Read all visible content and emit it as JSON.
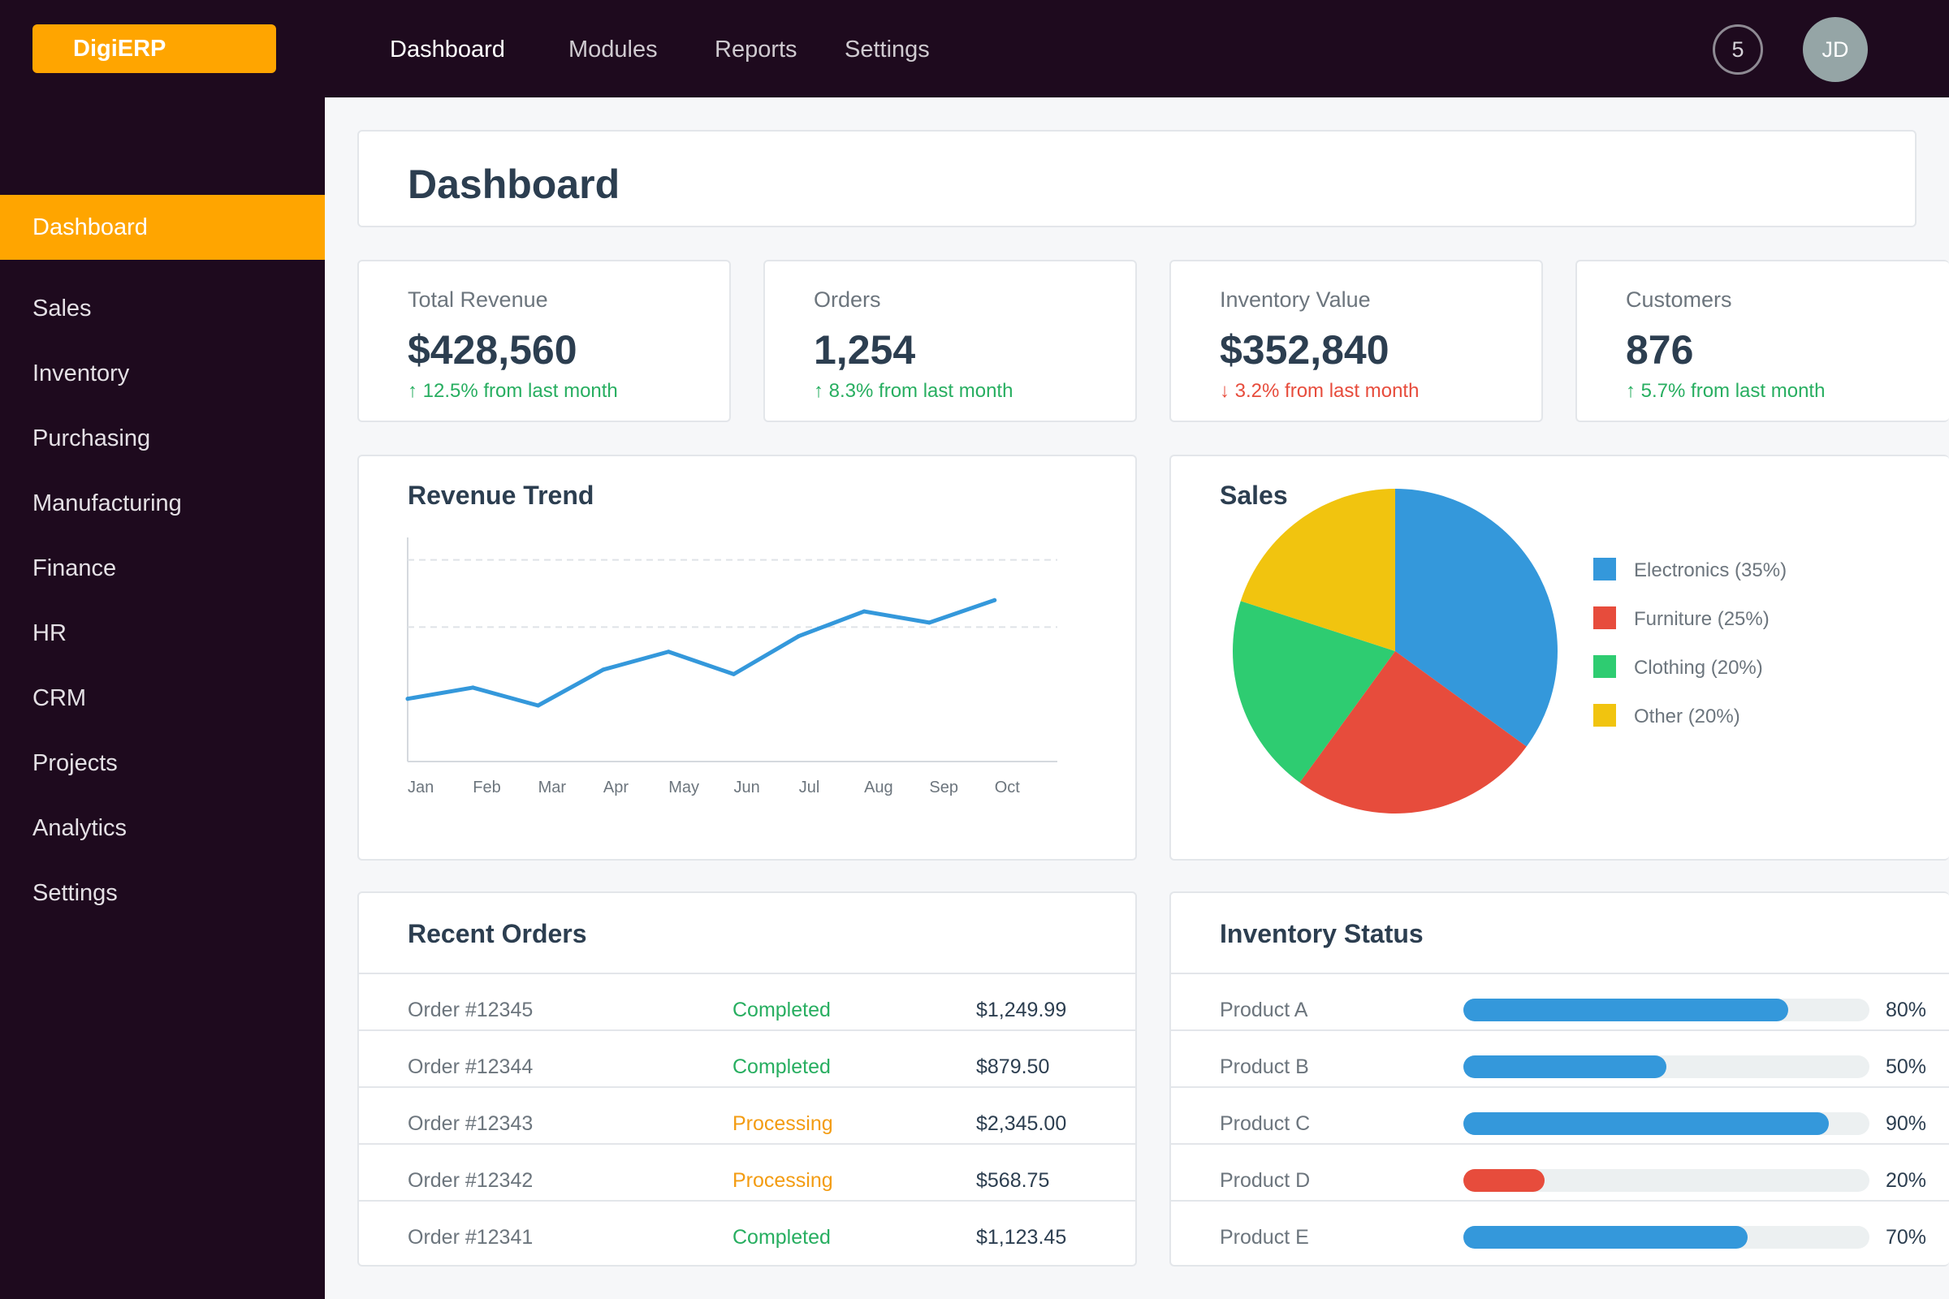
{
  "app": {
    "logo": "DigiERP"
  },
  "topnav": [
    {
      "label": "Dashboard",
      "active": true
    },
    {
      "label": "Modules",
      "active": false
    },
    {
      "label": "Reports",
      "active": false
    },
    {
      "label": "Settings",
      "active": false
    }
  ],
  "header": {
    "notification_count": "5",
    "avatar_initials": "JD"
  },
  "sidebar": {
    "items": [
      {
        "label": "Dashboard",
        "active": true
      },
      {
        "label": "Sales"
      },
      {
        "label": "Inventory"
      },
      {
        "label": "Purchasing"
      },
      {
        "label": "Manufacturing"
      },
      {
        "label": "Finance"
      },
      {
        "label": "HR"
      },
      {
        "label": "CRM"
      },
      {
        "label": "Projects"
      },
      {
        "label": "Analytics"
      },
      {
        "label": "Settings"
      }
    ]
  },
  "page": {
    "title": "Dashboard"
  },
  "stats": [
    {
      "label": "Total Revenue",
      "value": "$428,560",
      "change": "↑ 12.5% from last month",
      "trend": "up"
    },
    {
      "label": "Orders",
      "value": "1,254",
      "change": "↑ 8.3% from last month",
      "trend": "up"
    },
    {
      "label": "Inventory Value",
      "value": "$352,840",
      "change": "↓ 3.2% from last month",
      "trend": "down"
    },
    {
      "label": "Customers",
      "value": "876",
      "change": "↑ 5.7% from last month",
      "trend": "up"
    }
  ],
  "chart_data": [
    {
      "type": "line",
      "title": "Revenue Trend",
      "x": [
        "Jan",
        "Feb",
        "Mar",
        "Apr",
        "May",
        "Jun",
        "Jul",
        "Aug",
        "Sep",
        "Oct"
      ],
      "series": [
        {
          "values": [
            28,
            33,
            25,
            41,
            49,
            39,
            56,
            67,
            62,
            72
          ]
        }
      ],
      "ylim": [
        0,
        100
      ],
      "gridlines": [
        60,
        90
      ],
      "grid": true,
      "color": "#3498db"
    },
    {
      "type": "pie",
      "title": "Sales",
      "categories": [
        "Electronics (35%)",
        "Furniture (25%)",
        "Clothing (20%)",
        "Other (20%)"
      ],
      "values": [
        35,
        25,
        20,
        20
      ],
      "colors": [
        "#3498db",
        "#e74c3c",
        "#2ecc71",
        "#f1c40f"
      ],
      "legend": "right"
    }
  ],
  "recent_orders": {
    "title": "Recent Orders",
    "rows": [
      {
        "id": "Order #12345",
        "status": "Completed",
        "amount": "$1,249.99"
      },
      {
        "id": "Order #12344",
        "status": "Completed",
        "amount": "$879.50"
      },
      {
        "id": "Order #12343",
        "status": "Processing",
        "amount": "$2,345.00"
      },
      {
        "id": "Order #12342",
        "status": "Processing",
        "amount": "$568.75"
      },
      {
        "id": "Order #12341",
        "status": "Completed",
        "amount": "$1,123.45"
      }
    ],
    "status_colors": {
      "Completed": "#27ae60",
      "Processing": "#f39c12"
    }
  },
  "inventory_status": {
    "title": "Inventory Status",
    "items": [
      {
        "name": "Product A",
        "percent": 80,
        "label": "80%",
        "color": "#3498db"
      },
      {
        "name": "Product B",
        "percent": 50,
        "label": "50%",
        "color": "#3498db"
      },
      {
        "name": "Product C",
        "percent": 90,
        "label": "90%",
        "color": "#3498db"
      },
      {
        "name": "Product D",
        "percent": 20,
        "label": "20%",
        "color": "#e74c3c"
      },
      {
        "name": "Product E",
        "percent": 70,
        "label": "70%",
        "color": "#3498db"
      }
    ]
  },
  "colors": {
    "accent": "#ffa500",
    "nav_bg": "#1e0a1e",
    "up": "#27ae60",
    "down": "#e74c3c"
  }
}
